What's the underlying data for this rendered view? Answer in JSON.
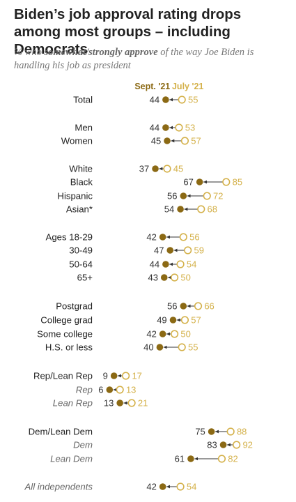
{
  "title": "Biden’s job approval rating drops among most groups – including Democrats",
  "subtitle": {
    "pre": "% who ",
    "emph": "somewhat/strongly approve",
    "post": " of the way Joe Biden is handling his job as president"
  },
  "colors": {
    "sept": "#8B6914",
    "july": "#D4B14A",
    "label": "#222222",
    "italic_label": "#666666",
    "arrow": "#333333"
  },
  "chart_data": {
    "type": "dot",
    "legend": {
      "sept": "Sept. '21",
      "july": "July '21"
    },
    "series": [
      {
        "name": "Sept. '21",
        "key": "sept"
      },
      {
        "name": "July '21",
        "key": "july"
      }
    ],
    "rows": [
      {
        "label": "Total",
        "sept": 44,
        "july": 55,
        "italic": false
      },
      {
        "label": "Men",
        "sept": 44,
        "july": 53,
        "italic": false
      },
      {
        "label": "Women",
        "sept": 45,
        "july": 57,
        "italic": false
      },
      {
        "label": "White",
        "sept": 37,
        "july": 45,
        "italic": false
      },
      {
        "label": "Black",
        "sept": 67,
        "july": 85,
        "italic": false
      },
      {
        "label": "Hispanic",
        "sept": 56,
        "july": 72,
        "italic": false
      },
      {
        "label": "Asian*",
        "sept": 54,
        "july": 68,
        "italic": false
      },
      {
        "label": "Ages 18-29",
        "sept": 42,
        "july": 56,
        "italic": false
      },
      {
        "label": "30-49",
        "sept": 47,
        "july": 59,
        "italic": false
      },
      {
        "label": "50-64",
        "sept": 44,
        "july": 54,
        "italic": false
      },
      {
        "label": "65+",
        "sept": 43,
        "july": 50,
        "italic": false
      },
      {
        "label": "Postgrad",
        "sept": 56,
        "july": 66,
        "italic": false
      },
      {
        "label": "College grad",
        "sept": 49,
        "july": 57,
        "italic": false
      },
      {
        "label": "Some college",
        "sept": 42,
        "july": 50,
        "italic": false
      },
      {
        "label": "H.S. or less",
        "sept": 40,
        "july": 55,
        "italic": false
      },
      {
        "label": "Rep/Lean Rep",
        "sept": 9,
        "july": 17,
        "italic": false
      },
      {
        "label": "Rep",
        "sept": 6,
        "july": 13,
        "italic": true
      },
      {
        "label": "Lean Rep",
        "sept": 13,
        "july": 21,
        "italic": true
      },
      {
        "label": "Dem/Lean Dem",
        "sept": 75,
        "july": 88,
        "italic": false
      },
      {
        "label": "Dem",
        "sept": 83,
        "july": 92,
        "italic": true
      },
      {
        "label": "Lean Dem",
        "sept": 61,
        "july": 82,
        "italic": true
      },
      {
        "label": "All independents",
        "sept": 42,
        "july": 54,
        "italic": true
      }
    ]
  }
}
